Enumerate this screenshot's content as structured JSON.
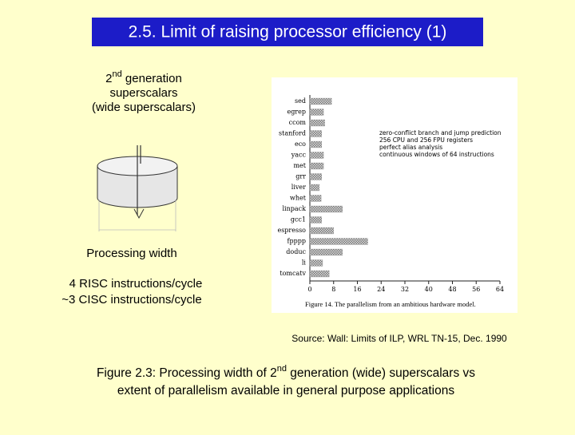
{
  "slide": {
    "title": "2.5. Limit of raising processor efficiency (1)",
    "gen_line": [
      "2",
      "nd",
      " generation"
    ],
    "gen_line2": "superscalars",
    "gen_line3": "(wide superscalars)",
    "width_label": "Processing width",
    "risc": "4 RISC instructions/cycle",
    "cisc": "~3 CISC instructions/cycle",
    "source": "Source: Wall: Limits of ILP, WRL TN-15, Dec. 1990",
    "caption_line1": [
      "Figure 2.3: Processing width of 2",
      "nd",
      " generation (wide) superscalars vs"
    ],
    "caption_line2": "extent of parallelism available in general purpose applications"
  },
  "chart_data": {
    "type": "bar",
    "orientation": "horizontal",
    "categories": [
      "sed",
      "egrep",
      "ccom",
      "stanford",
      "eco",
      "yacc",
      "met",
      "grr",
      "liver",
      "whet",
      "linpack",
      "gcc1",
      "espresso",
      "fpppp",
      "doduc",
      "li",
      "tomcatv"
    ],
    "values": [
      7.3,
      4.6,
      5,
      4,
      4,
      4.6,
      4.6,
      4,
      3.2,
      3.8,
      11,
      4,
      8,
      19.5,
      11,
      4.3,
      6.5
    ],
    "color": "#8a8a8a",
    "xlim": [
      0,
      64
    ],
    "xticks": [
      0,
      8,
      16,
      24,
      32,
      40,
      48,
      56,
      64
    ],
    "annotation": [
      "zero-conflict branch and jump prediction",
      "256 CPU and 256 FPU registers",
      "perfect alias analysis",
      "continuous windows of 64 instructions"
    ],
    "caption": "Figure 14. The parallelism from an ambitious hardware model."
  }
}
